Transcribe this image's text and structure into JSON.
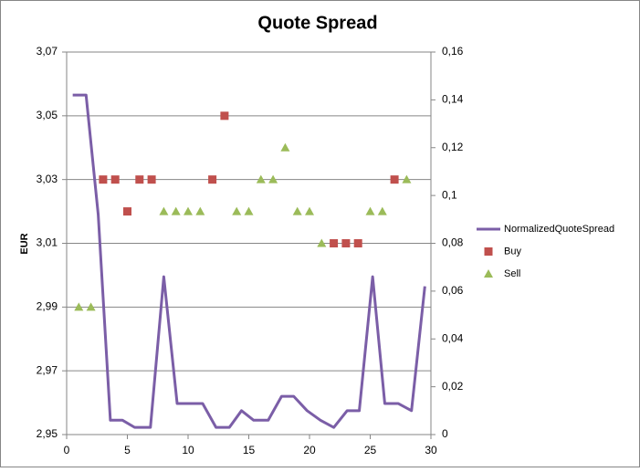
{
  "chart_data": {
    "type": "scatter",
    "title": "Quote Spread",
    "y_label": "EUR",
    "xlim": [
      0,
      30
    ],
    "xticks": [
      0,
      5,
      10,
      15,
      20,
      25,
      30
    ],
    "ylim": [
      2.95,
      3.07
    ],
    "yticks": [
      {
        "value": 2.95,
        "label": "2,95"
      },
      {
        "value": 2.97,
        "label": "2,97"
      },
      {
        "value": 2.99,
        "label": "2,99"
      },
      {
        "value": 3.01,
        "label": "3,01"
      },
      {
        "value": 3.03,
        "label": "3,03"
      },
      {
        "value": 3.05,
        "label": "3,05"
      },
      {
        "value": 3.07,
        "label": "3,07"
      }
    ],
    "y2lim": [
      0,
      0.16
    ],
    "y2ticks": [
      0,
      {
        "value": 0.02,
        "label": "0,02"
      },
      {
        "value": 0.04,
        "label": "0,04"
      },
      {
        "value": 0.06,
        "label": "0,06"
      },
      {
        "value": 0.08,
        "label": "0,08"
      },
      {
        "value": 0.1,
        "label": "0,1"
      },
      {
        "value": 0.12,
        "label": "0,12"
      },
      {
        "value": 0.14,
        "label": "0,14"
      },
      {
        "value": 0.16,
        "label": "0,16"
      }
    ],
    "grid": true,
    "legend": "right",
    "series": [
      {
        "name": "NormalizedQuoteSpread",
        "type": "line",
        "axis": "y2",
        "color": "#7b5ea7",
        "x": [
          0.5,
          1.6,
          2.6,
          3.6,
          4.6,
          5.6,
          6.9,
          8.0,
          9.1,
          10.2,
          11.2,
          12.3,
          13.4,
          14.4,
          15.4,
          16.6,
          17.7,
          18.7,
          19.8,
          20.9,
          22.0,
          23.1,
          24.1,
          25.2,
          26.2,
          27.3,
          28.4,
          29.5
        ],
        "values": [
          0.142,
          0.142,
          0.092,
          0.006,
          0.006,
          0.003,
          0.003,
          0.066,
          0.013,
          0.013,
          0.013,
          0.003,
          0.003,
          0.01,
          0.006,
          0.006,
          0.016,
          0.016,
          0.01,
          0.006,
          0.003,
          0.01,
          0.01,
          0.066,
          0.013,
          0.013,
          0.01,
          0.062
        ]
      },
      {
        "name": "Buy",
        "type": "scatter",
        "marker": "square",
        "color": "#c0504d",
        "x": [
          3,
          4,
          5,
          6,
          7,
          12,
          13,
          22,
          23,
          24,
          27
        ],
        "values": [
          3.03,
          3.03,
          3.02,
          3.03,
          3.03,
          3.03,
          3.05,
          3.01,
          3.01,
          3.01,
          3.03
        ]
      },
      {
        "name": "Sell",
        "type": "scatter",
        "marker": "triangle",
        "color": "#9bbb59",
        "x": [
          1,
          2,
          8,
          9,
          10,
          11,
          14,
          15,
          16,
          17,
          18,
          19,
          20,
          21,
          25,
          26,
          28
        ],
        "values": [
          2.99,
          2.99,
          3.02,
          3.02,
          3.02,
          3.02,
          3.02,
          3.02,
          3.03,
          3.03,
          3.04,
          3.02,
          3.02,
          3.01,
          3.02,
          3.02,
          3.03
        ]
      }
    ]
  }
}
